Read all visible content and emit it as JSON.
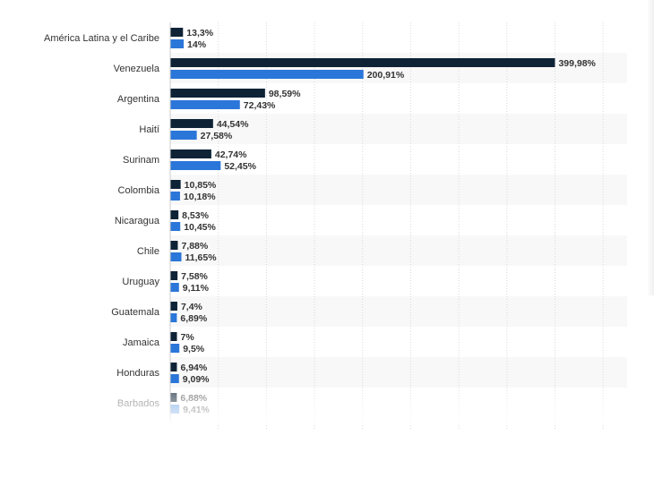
{
  "chart_data": {
    "type": "bar",
    "orientation": "horizontal",
    "categories": [
      "América Latina y el Caribe",
      "Venezuela",
      "Argentina",
      "Haití",
      "Surinam",
      "Colombia",
      "Nicaragua",
      "Chile",
      "Uruguay",
      "Guatemala",
      "Jamaica",
      "Honduras",
      "Barbados"
    ],
    "series": [
      {
        "color": "#0f2336",
        "values": [
          13.3,
          399.98,
          98.59,
          44.54,
          42.74,
          10.85,
          8.53,
          7.88,
          7.58,
          7.4,
          7,
          6.94,
          6.88
        ],
        "labels": [
          "13,3%",
          "399,98%",
          "98,59%",
          "44,54%",
          "42,74%",
          "10,85%",
          "8,53%",
          "7,88%",
          "7,58%",
          "7,4%",
          "7%",
          "6,94%",
          "6,88%"
        ]
      },
      {
        "color": "#2b76d9",
        "values": [
          14,
          200.91,
          72.43,
          27.58,
          52.45,
          10.18,
          10.45,
          11.65,
          9.11,
          6.89,
          9.5,
          9.09,
          9.41
        ],
        "labels": [
          "14%",
          "200,91%",
          "72,43%",
          "27,58%",
          "52,45%",
          "10,18%",
          "10,45%",
          "11,65%",
          "9,11%",
          "6,89%",
          "9,5%",
          "9,09%",
          "9,41%"
        ]
      }
    ],
    "xlim": [
      0,
      475
    ],
    "grid": true,
    "title": "",
    "xlabel": "",
    "ylabel": ""
  }
}
